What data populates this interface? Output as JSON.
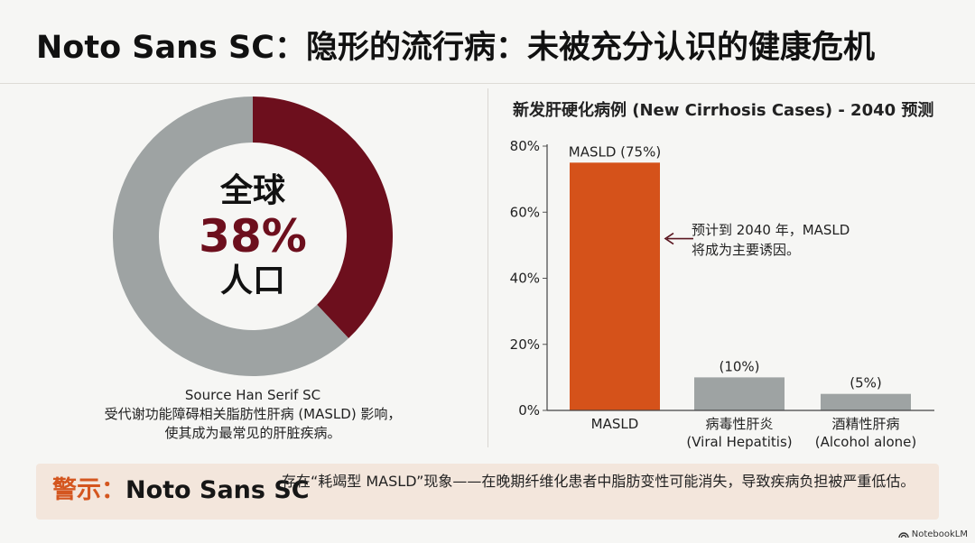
{
  "title": "Noto Sans SC：隐形的流行病：未被充分认识的健康危机",
  "donut": {
    "top_text": "全球",
    "percent_text": "38%",
    "bottom_text": "人口",
    "caption_line1": "Source Han Serif SC",
    "caption_line2": "受代谢功能障碍相关脂肪性肝病 (MASLD) 影响，",
    "caption_line3": "使其成为最常见的肝脏疾病。",
    "colors": {
      "highlight": "#6d0f1d",
      "remainder": "#9ea3a3"
    }
  },
  "chart_data": [
    {
      "type": "pie",
      "categories": [
        "MASLD",
        ""
      ],
      "values": [
        38,
        62
      ],
      "center_label": [
        "全球",
        "38%",
        "人口"
      ]
    },
    {
      "type": "bar",
      "title": "新发肝硬化病例 (New Cirrhosis Cases) - 2040 预测",
      "categories": [
        [
          "MASLD"
        ],
        [
          "病毒性肝炎",
          "(Viral Hepatitis)"
        ],
        [
          "酒精性肝病",
          "(Alcohol alone)"
        ]
      ],
      "values": [
        75,
        10,
        5
      ],
      "value_labels": [
        "MASLD (75%)",
        "(10%)",
        "(5%)"
      ],
      "bar_colors": [
        "#d5521a",
        "#9ea3a3",
        "#9ea3a3"
      ],
      "ylim": [
        0,
        80
      ],
      "yticks": [
        0,
        20,
        40,
        60,
        80
      ],
      "ytick_labels": [
        "0%",
        "20%",
        "40%",
        "60%",
        "80%"
      ],
      "xlabel": "",
      "ylabel": "",
      "grid": false,
      "annotation": {
        "line1": "预计到 2040 年，MASLD",
        "line2": "将成为主要诱因。",
        "target_category": 0,
        "target_value": 52
      }
    }
  ],
  "warning": {
    "prefix": "警示：",
    "font_label": "Noto Sans SC",
    "text": "存在“耗竭型 MASLD”现象——在晚期纤维化患者中脂肪变性可能消失，导致疾病负担被严重低估。"
  },
  "brand": {
    "name": "NotebookLM"
  },
  "colors": {
    "accent_orange": "#d5521a",
    "dark_red": "#6d0f1d",
    "gray": "#9ea3a3",
    "warning_bg": "#f3e6dc"
  }
}
